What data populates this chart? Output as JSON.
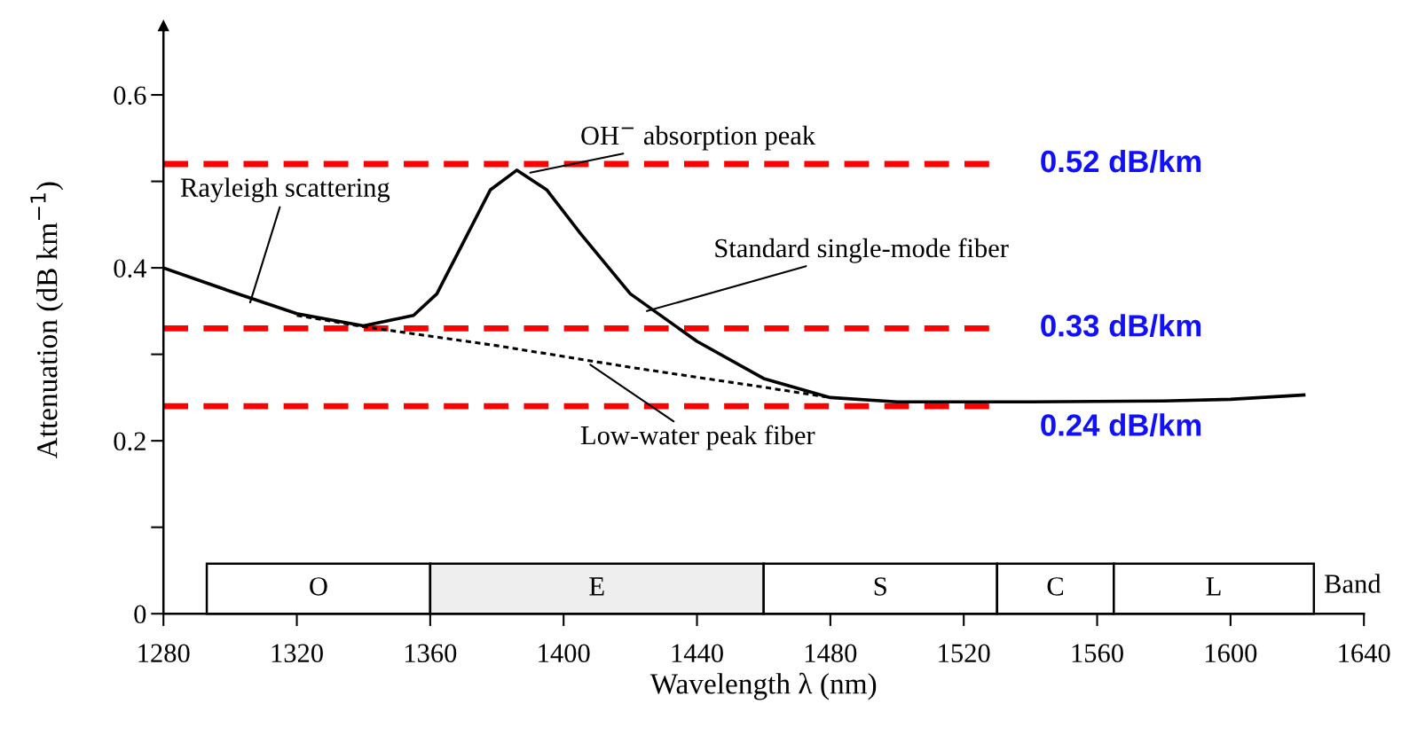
{
  "chart_data": {
    "type": "line",
    "xlabel": "Wavelength λ (nm)",
    "ylabel": "Attenuation (dB km$^{−1}$)",
    "x": [
      1280,
      1300,
      1320,
      1340,
      1355,
      1362,
      1370,
      1378,
      1386,
      1395,
      1405,
      1420,
      1440,
      1460,
      1480,
      1500,
      1540,
      1580,
      1600,
      1622
    ],
    "series": [
      {
        "color": "#000000",
        "line_style": "solid",
        "values": [
          0.4,
          0.373,
          0.347,
          0.333,
          0.345,
          0.37,
          0.43,
          0.49,
          0.513,
          0.49,
          0.44,
          0.37,
          0.315,
          0.272,
          0.25,
          0.245,
          0.245,
          0.246,
          0.248,
          0.253
        ]
      },
      {
        "color": "#000000",
        "line_style": "dotted",
        "x": [
          1320,
          1340,
          1380,
          1420,
          1460,
          1480
        ],
        "values": [
          0.345,
          0.332,
          0.31,
          0.285,
          0.262,
          0.25
        ]
      }
    ],
    "xlim": [
      1280,
      1640
    ],
    "xticks": [
      1280,
      1320,
      1360,
      1400,
      1440,
      1480,
      1520,
      1560,
      1600,
      1640
    ],
    "ylim": [
      0,
      0.68
    ],
    "yticks": [
      0,
      {
        "value": 0.1,
        "label": null
      },
      0.2,
      {
        "value": 0.3,
        "label": null
      },
      0.4,
      {
        "value": 0.5,
        "label": null
      },
      0.6
    ],
    "grid": false,
    "ref_lines": [
      {
        "axis": "y",
        "value": 0.52,
        "label": "0.52 dB/km",
        "color": "#ff0000",
        "line_style": "dashed"
      },
      {
        "axis": "y",
        "value": 0.33,
        "label": "0.33 dB/km",
        "color": "#ff0000",
        "line_style": "dashed"
      },
      {
        "axis": "y",
        "value": 0.24,
        "label": "0.24 dB/km",
        "color": "#ff0000",
        "line_style": "dashed"
      }
    ],
    "bands": [
      {
        "axis": "x",
        "from": 1293,
        "to": 1360,
        "label": "O",
        "color": "#ffffff"
      },
      {
        "axis": "x",
        "from": 1360,
        "to": 1460,
        "label": "E",
        "color": "#eeeeee"
      },
      {
        "axis": "x",
        "from": 1460,
        "to": 1530,
        "label": "S",
        "color": "#ffffff"
      },
      {
        "axis": "x",
        "from": 1530,
        "to": 1565,
        "label": "C",
        "color": "#ffffff"
      },
      {
        "axis": "x",
        "from": 1565,
        "to": 1625,
        "label": "L",
        "color": "#ffffff"
      }
    ],
    "annotations": [
      {
        "text": "Rayleigh scattering",
        "x": 1306,
        "y": 0.36
      },
      {
        "text": "OH$^{−}$ absorption peak",
        "x": 1390,
        "y": 0.51
      },
      {
        "text": "Standard single-mode fiber",
        "x": 1425,
        "y": 0.35
      },
      {
        "text": "Low-water peak fiber",
        "x": 1408,
        "y": 0.288
      },
      "Band"
    ]
  }
}
